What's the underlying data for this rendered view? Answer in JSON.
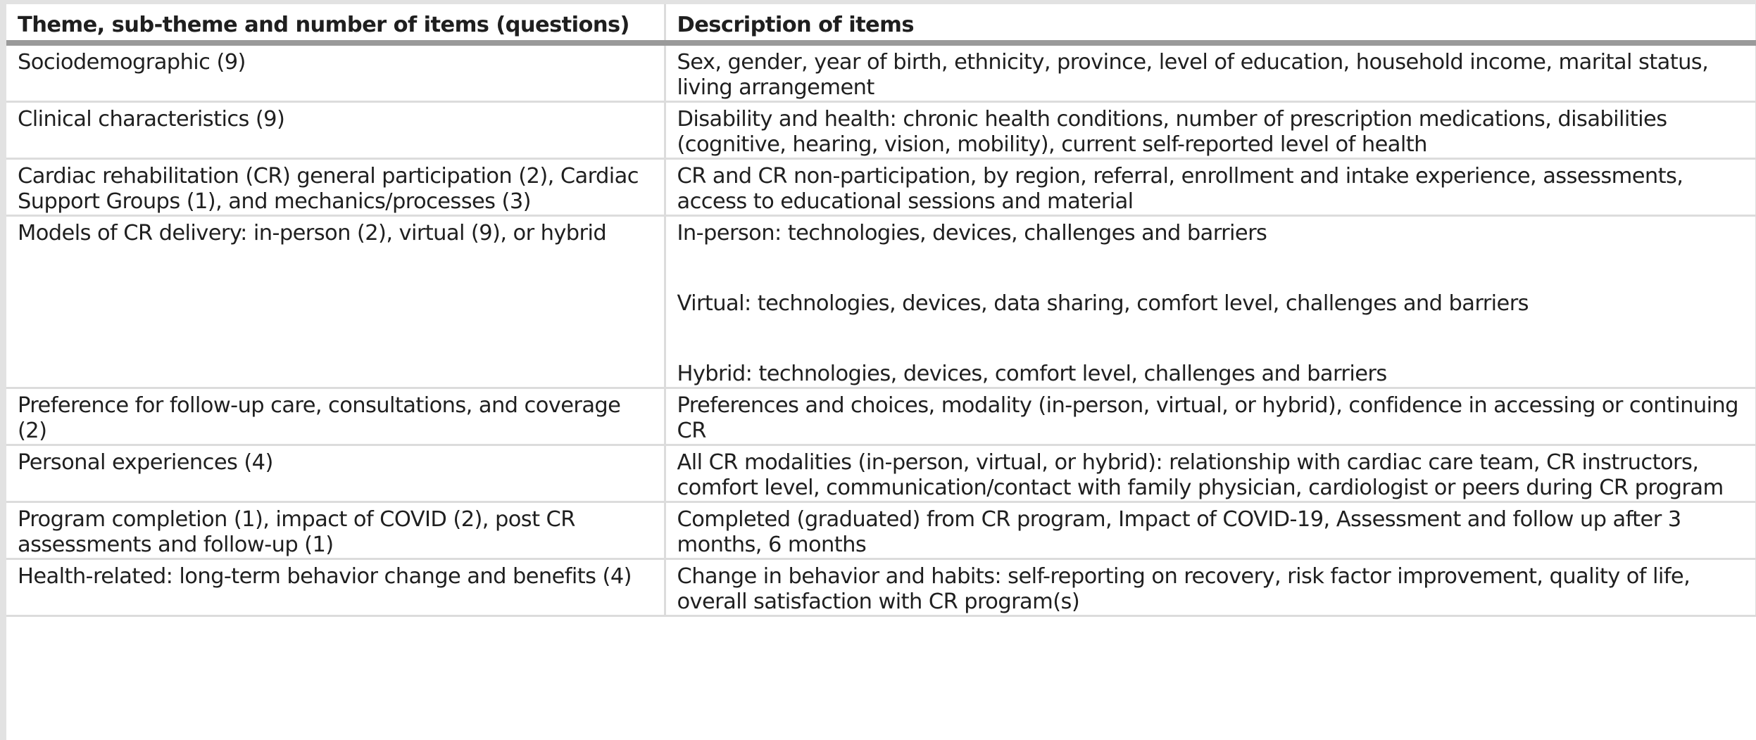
{
  "table": {
    "headers": [
      "Theme, sub-theme and number of items (questions)",
      "Description of items"
    ],
    "rows": [
      {
        "theme": "Sociodemographic (9)",
        "description": "Sex, gender, year of birth, ethnicity, province, level of education, household income, marital status, living arrangement"
      },
      {
        "theme": "Clinical characteristics (9)",
        "description": "Disability and health: chronic health conditions, number of prescription medications, disabilities (cognitive, hearing, vision, mobility), current self-reported level of health"
      },
      {
        "theme": "Cardiac rehabilitation (CR) general participation (2), Cardiac Support Groups (1), and mechanics/processes (3)",
        "description": "CR and CR non-participation, by region, referral, enrollment and intake experience, assessments, access to educational sessions and material"
      },
      {
        "theme": "Models of CR delivery: in-person (2), virtual (9), or hybrid",
        "description_parts": [
          "In-person: technologies, devices, challenges and barriers",
          "Virtual: technologies, devices, data sharing, comfort level, challenges and barriers",
          "Hybrid: technologies, devices, comfort level, challenges and barriers"
        ]
      },
      {
        "theme": "Preference for follow-up care, consultations, and coverage (2)",
        "description": "Preferences and choices, modality (in-person, virtual, or hybrid), confidence in accessing or continuing CR"
      },
      {
        "theme": "Personal experiences (4)",
        "description": "All CR modalities (in-person, virtual, or hybrid): relationship with cardiac care team, CR instructors, comfort level, communication/contact with family physician, cardiologist or peers during CR program"
      },
      {
        "theme": "Program completion (1), impact of COVID (2), post CR assessments and follow-up (1)",
        "description": "Completed (graduated) from CR program, Impact of COVID-19, Assessment and follow up after 3 months, 6 months"
      },
      {
        "theme": "Health-related: long-term behavior change and benefits (4)",
        "description": "Change in behavior and habits: self-reporting on recovery, risk factor improvement, quality of life, overall satisfaction with CR program(s)"
      }
    ]
  }
}
